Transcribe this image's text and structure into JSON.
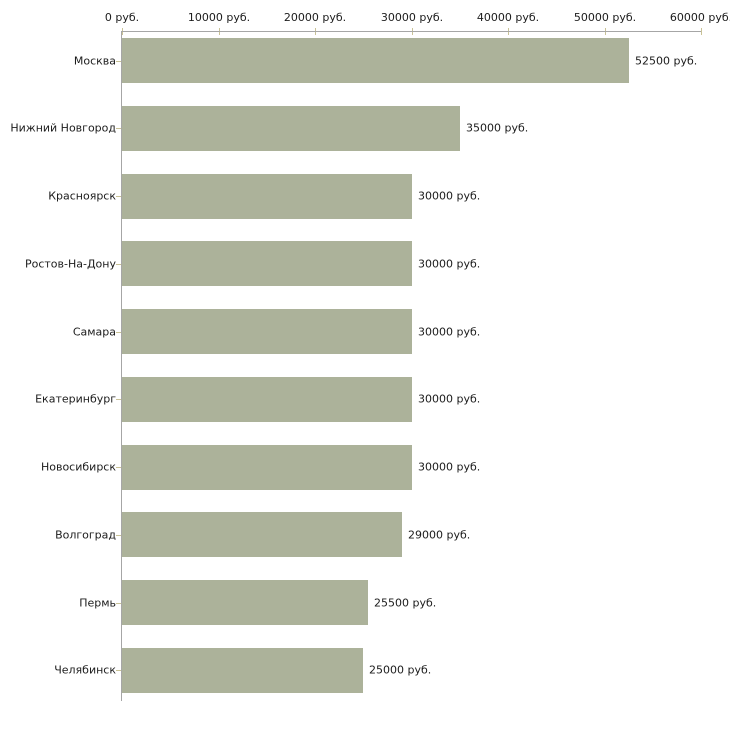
{
  "chart_data": {
    "type": "bar",
    "orientation": "horizontal",
    "title": "",
    "xlabel": "",
    "ylabel": "",
    "unit": "руб.",
    "categories": [
      "Москва",
      "Нижний Новгород",
      "Красноярск",
      "Ростов-На-Дону",
      "Самара",
      "Екатеринбург",
      "Новосибирск",
      "Волгоград",
      "Пермь",
      "Челябинск"
    ],
    "values": [
      52500,
      35000,
      30000,
      30000,
      30000,
      30000,
      30000,
      29000,
      25500,
      25000
    ],
    "value_labels": [
      "52500 руб.",
      "35000 руб.",
      "30000 руб.",
      "30000 руб.",
      "30000 руб.",
      "30000 руб.",
      "30000 руб.",
      "29000 руб.",
      "25500 руб.",
      "25000 руб."
    ],
    "x_ticks": [
      0,
      10000,
      20000,
      30000,
      40000,
      50000,
      60000
    ],
    "x_tick_labels": [
      "0 руб.",
      "10000 руб.",
      "20000 руб.",
      "30000 руб.",
      "40000 руб.",
      "50000 руб.",
      "60000 руб."
    ],
    "xlim": [
      0,
      60000
    ],
    "grid": false,
    "legend": false,
    "colors": {
      "bar": "#acb29a",
      "axis_line": "#a6a6a6",
      "tick_mark": "#c9c296",
      "text": "#1c1c1c",
      "background": "#ffffff"
    }
  }
}
